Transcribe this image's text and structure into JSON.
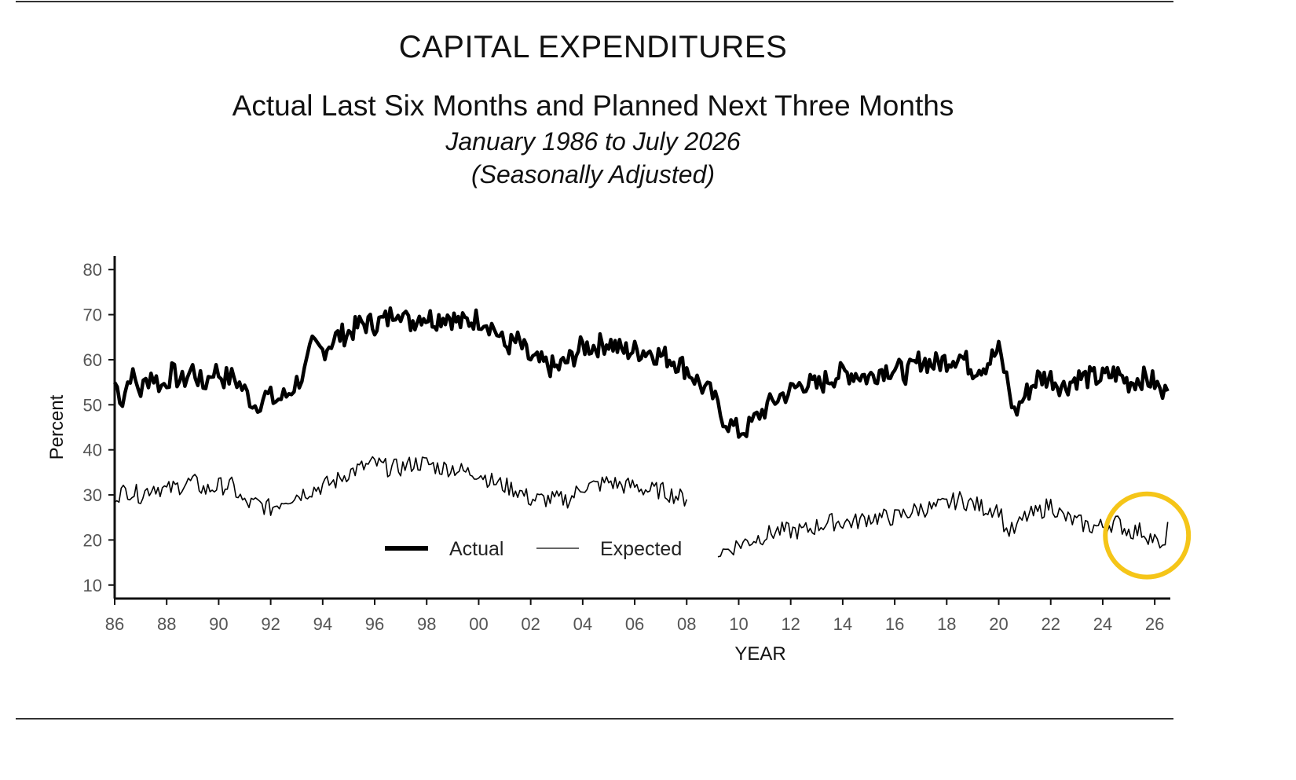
{
  "header": {
    "title": "CAPITAL EXPENDITURES",
    "subtitle": "Actual Last Six Months and Planned Next Three Months",
    "date_range": "January 1986 to July 2026",
    "note": "(Seasonally Adjusted)"
  },
  "chart_data": {
    "type": "line",
    "xlabel": "YEAR",
    "ylabel": "Percent",
    "xlim": [
      1986,
      2026.6
    ],
    "ylim": [
      7,
      83
    ],
    "yticks": [
      10,
      20,
      30,
      40,
      50,
      60,
      70,
      80
    ],
    "xticks": [
      {
        "year": 1986,
        "label": "86"
      },
      {
        "year": 1988,
        "label": "88"
      },
      {
        "year": 1990,
        "label": "90"
      },
      {
        "year": 1992,
        "label": "92"
      },
      {
        "year": 1994,
        "label": "94"
      },
      {
        "year": 1996,
        "label": "96"
      },
      {
        "year": 1998,
        "label": "98"
      },
      {
        "year": 2000,
        "label": "00"
      },
      {
        "year": 2002,
        "label": "02"
      },
      {
        "year": 2004,
        "label": "04"
      },
      {
        "year": 2006,
        "label": "06"
      },
      {
        "year": 2008,
        "label": "08"
      },
      {
        "year": 2010,
        "label": "10"
      },
      {
        "year": 2012,
        "label": "12"
      },
      {
        "year": 2014,
        "label": "14"
      },
      {
        "year": 2016,
        "label": "16"
      },
      {
        "year": 2018,
        "label": "18"
      },
      {
        "year": 2020,
        "label": "20"
      },
      {
        "year": 2022,
        "label": "22"
      },
      {
        "year": 2024,
        "label": "24"
      },
      {
        "year": 2026,
        "label": "26"
      }
    ],
    "grid": false,
    "legend_position": "bottom-center",
    "series": [
      {
        "name": "Actual",
        "color": "#000000",
        "style": "thick",
        "points": [
          [
            1986.0,
            55
          ],
          [
            1986.3,
            51
          ],
          [
            1986.6,
            57
          ],
          [
            1987.0,
            53
          ],
          [
            1987.4,
            57
          ],
          [
            1987.8,
            54
          ],
          [
            1988.2,
            57
          ],
          [
            1988.6,
            55
          ],
          [
            1989.0,
            58
          ],
          [
            1989.4,
            54
          ],
          [
            1989.8,
            58
          ],
          [
            1990.2,
            56
          ],
          [
            1990.6,
            56
          ],
          [
            1991.0,
            53
          ],
          [
            1991.4,
            50
          ],
          [
            1991.8,
            52
          ],
          [
            1992.2,
            51
          ],
          [
            1992.6,
            52
          ],
          [
            1993.0,
            55
          ],
          [
            1993.3,
            57
          ],
          [
            1993.6,
            63
          ],
          [
            1994.0,
            62
          ],
          [
            1994.5,
            65
          ],
          [
            1995.0,
            66
          ],
          [
            1995.5,
            68
          ],
          [
            1996.0,
            68
          ],
          [
            1996.5,
            69
          ],
          [
            1996.9,
            72
          ],
          [
            1997.3,
            68
          ],
          [
            1997.8,
            70
          ],
          [
            1998.3,
            69
          ],
          [
            1998.8,
            70
          ],
          [
            1999.3,
            68
          ],
          [
            1999.8,
            69
          ],
          [
            2000.2,
            69
          ],
          [
            2000.6,
            67
          ],
          [
            2001.0,
            63
          ],
          [
            2001.5,
            64
          ],
          [
            2002.0,
            60
          ],
          [
            2002.5,
            59
          ],
          [
            2003.0,
            58
          ],
          [
            2003.5,
            60
          ],
          [
            2004.0,
            63
          ],
          [
            2004.5,
            63
          ],
          [
            2005.0,
            64
          ],
          [
            2005.5,
            62
          ],
          [
            2006.0,
            62
          ],
          [
            2006.5,
            62
          ],
          [
            2007.0,
            61
          ],
          [
            2007.5,
            60
          ],
          [
            2008.0,
            58
          ],
          [
            2008.3,
            56
          ],
          [
            2008.6,
            54
          ],
          [
            2009.0,
            52
          ],
          [
            2009.3,
            48
          ],
          [
            2009.6,
            46
          ],
          [
            2010.0,
            44
          ],
          [
            2010.4,
            45
          ],
          [
            2010.8,
            48
          ],
          [
            2011.2,
            50
          ],
          [
            2011.6,
            52
          ],
          [
            2012.0,
            53
          ],
          [
            2012.5,
            55
          ],
          [
            2013.0,
            54
          ],
          [
            2013.5,
            56
          ],
          [
            2014.0,
            57
          ],
          [
            2014.5,
            57
          ],
          [
            2015.0,
            56
          ],
          [
            2015.5,
            58
          ],
          [
            2016.0,
            58
          ],
          [
            2016.5,
            57
          ],
          [
            2017.0,
            60
          ],
          [
            2017.5,
            59
          ],
          [
            2018.0,
            60
          ],
          [
            2018.5,
            61
          ],
          [
            2019.0,
            58
          ],
          [
            2019.5,
            59
          ],
          [
            2020.0,
            62
          ],
          [
            2020.3,
            56
          ],
          [
            2020.6,
            48
          ],
          [
            2021.0,
            52
          ],
          [
            2021.5,
            56
          ],
          [
            2022.0,
            56
          ],
          [
            2022.5,
            54
          ],
          [
            2023.0,
            56
          ],
          [
            2023.5,
            56
          ],
          [
            2024.0,
            56
          ],
          [
            2024.5,
            57
          ],
          [
            2025.0,
            55
          ],
          [
            2025.5,
            56
          ],
          [
            2026.0,
            55
          ],
          [
            2026.3,
            52
          ],
          [
            2026.5,
            53
          ]
        ]
      },
      {
        "name": "Expected",
        "color": "#000000",
        "style": "thin",
        "segments": [
          [
            [
              1986.0,
              30
            ],
            [
              1986.5,
              31
            ],
            [
              1987.0,
              30
            ],
            [
              1987.5,
              32
            ],
            [
              1988.0,
              31
            ],
            [
              1988.5,
              32
            ],
            [
              1989.0,
              33
            ],
            [
              1989.5,
              31
            ],
            [
              1990.0,
              32
            ],
            [
              1990.5,
              32
            ],
            [
              1991.0,
              28
            ],
            [
              1991.5,
              28
            ],
            [
              1992.0,
              27
            ],
            [
              1992.5,
              29
            ],
            [
              1993.0,
              30
            ],
            [
              1993.5,
              31
            ],
            [
              1994.0,
              32
            ],
            [
              1994.5,
              33
            ],
            [
              1995.0,
              35
            ],
            [
              1995.5,
              36
            ],
            [
              1996.0,
              37
            ],
            [
              1996.5,
              36
            ],
            [
              1997.0,
              36
            ],
            [
              1997.5,
              37
            ],
            [
              1998.0,
              37
            ],
            [
              1998.5,
              36
            ],
            [
              1999.0,
              36
            ],
            [
              1999.5,
              35
            ],
            [
              2000.0,
              35
            ],
            [
              2000.5,
              33
            ],
            [
              2001.0,
              32
            ],
            [
              2001.5,
              31
            ],
            [
              2002.0,
              29
            ],
            [
              2002.5,
              29
            ],
            [
              2003.0,
              29
            ],
            [
              2003.5,
              29
            ],
            [
              2004.0,
              32
            ],
            [
              2004.5,
              32
            ],
            [
              2005.0,
              33
            ],
            [
              2005.5,
              32
            ],
            [
              2006.0,
              32
            ],
            [
              2006.5,
              31
            ],
            [
              2007.0,
              31
            ],
            [
              2007.5,
              30
            ],
            [
              2008.0,
              29
            ]
          ],
          [
            [
              2009.2,
              17
            ],
            [
              2009.6,
              18
            ],
            [
              2010.0,
              19
            ],
            [
              2010.5,
              20
            ],
            [
              2011.0,
              21
            ],
            [
              2011.5,
              22
            ],
            [
              2012.0,
              22
            ],
            [
              2012.5,
              22
            ],
            [
              2013.0,
              23
            ],
            [
              2013.5,
              24
            ],
            [
              2014.0,
              24
            ],
            [
              2014.5,
              24
            ],
            [
              2015.0,
              25
            ],
            [
              2015.5,
              25
            ],
            [
              2016.0,
              25
            ],
            [
              2016.5,
              26
            ],
            [
              2017.0,
              27
            ],
            [
              2017.5,
              27
            ],
            [
              2018.0,
              28
            ],
            [
              2018.5,
              29
            ],
            [
              2019.0,
              28
            ],
            [
              2019.5,
              27
            ],
            [
              2020.0,
              27
            ],
            [
              2020.3,
              22
            ],
            [
              2020.6,
              22
            ],
            [
              2021.0,
              25
            ],
            [
              2021.5,
              26
            ],
            [
              2022.0,
              28
            ],
            [
              2022.5,
              25
            ],
            [
              2023.0,
              24
            ],
            [
              2023.5,
              23
            ],
            [
              2024.0,
              23
            ],
            [
              2024.5,
              24
            ],
            [
              2025.0,
              22
            ],
            [
              2025.5,
              22
            ],
            [
              2026.0,
              20
            ],
            [
              2026.3,
              17
            ],
            [
              2026.5,
              24
            ]
          ]
        ]
      }
    ],
    "annotation": {
      "type": "circle",
      "color": "#f5c518",
      "center": [
        2025.7,
        21
      ],
      "radius_years": 1.6
    }
  },
  "legend": {
    "actual_label": "Actual",
    "expected_label": "Expected"
  }
}
